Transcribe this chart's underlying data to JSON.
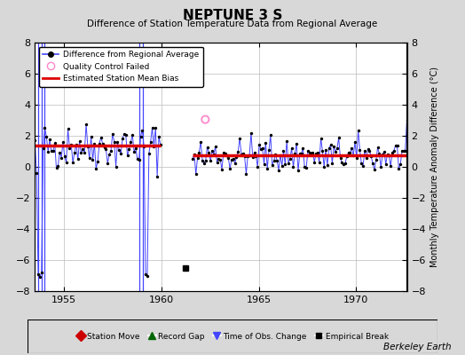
{
  "title": "NEPTUNE 3 S",
  "subtitle": "Difference of Station Temperature Data from Regional Average",
  "ylabel": "Monthly Temperature Anomaly Difference (°C)",
  "watermark": "Berkeley Earth",
  "xlim": [
    1953.5,
    1972.6
  ],
  "ylim": [
    -8,
    8
  ],
  "yticks": [
    -8,
    -6,
    -4,
    -2,
    0,
    2,
    4,
    6,
    8
  ],
  "xticks": [
    1955,
    1960,
    1965,
    1970
  ],
  "bg_color": "#d8d8d8",
  "plot_bg_color": "#ffffff",
  "grid_color": "#bbbbbb",
  "line_color": "#4444ff",
  "marker_color": "#000000",
  "bias_color": "#dd0000",
  "bias_value1": 1.35,
  "bias_value2": 0.72,
  "bias_start1": 1953.5,
  "bias_end1": 1959.95,
  "bias_start2": 1961.6,
  "bias_end2": 1972.6,
  "gap_start": 1959.95,
  "gap_end": 1961.6,
  "vertical_lines_x": [
    1953.65,
    1953.83,
    1954.0,
    1958.85,
    1959.05
  ],
  "empirical_break_x": 1961.25,
  "empirical_break_y": -6.5,
  "qc_fail_x": 1962.25,
  "qc_fail_y": 3.05,
  "seed": 42,
  "before_x_start": 1953.5,
  "before_x_end": 1959.95,
  "before_n": 77,
  "before_mean": 1.35,
  "before_std": 0.75,
  "after_x_start": 1961.6,
  "after_x_end": 1972.6,
  "after_n": 133,
  "after_mean": 0.72,
  "after_std": 0.6
}
